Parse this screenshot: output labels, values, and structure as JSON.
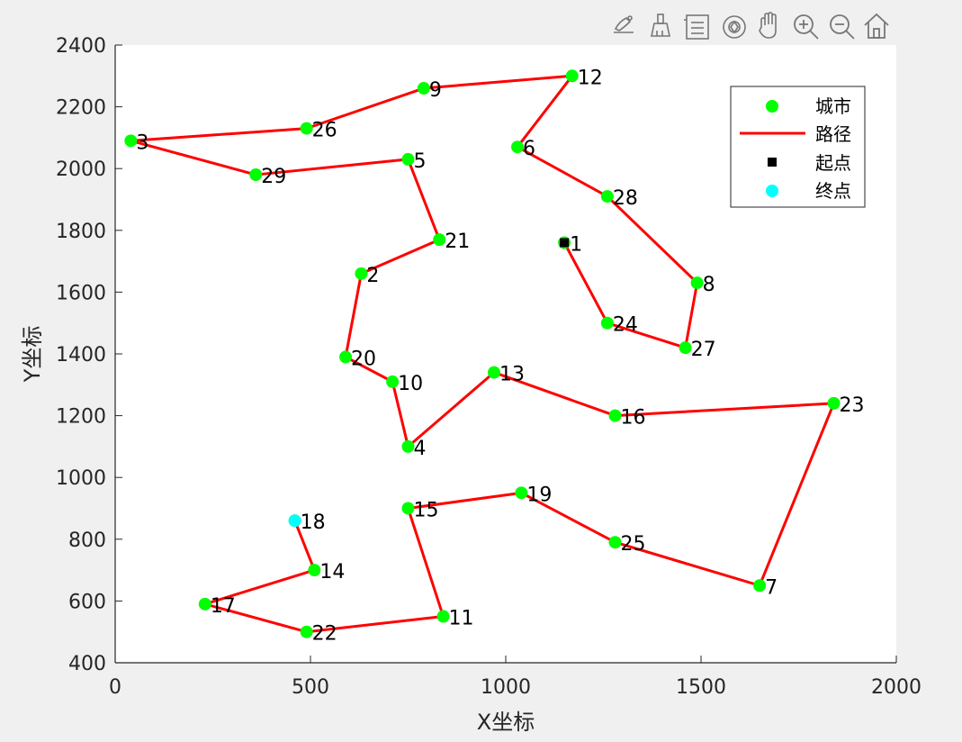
{
  "toolbar": {
    "icons": [
      "brush-icon",
      "paint-icon",
      "legend-icon",
      "rotate-icon",
      "pan-hand-icon",
      "zoom-in-icon",
      "zoom-out-icon",
      "home-icon"
    ]
  },
  "colors": {
    "figure_bg": "#f0f0f0",
    "axes_bg": "#ffffff",
    "city": "#00ff00",
    "path": "#ff0000",
    "start": "#000000",
    "end": "#00ffff"
  },
  "chart_data": {
    "type": "line",
    "title": "",
    "xlabel": "X坐标",
    "ylabel": "Y坐标",
    "xlim": [
      0,
      2000
    ],
    "ylim": [
      400,
      2400
    ],
    "xticks": [
      0,
      500,
      1000,
      1500,
      2000
    ],
    "yticks": [
      400,
      600,
      800,
      1000,
      1200,
      1400,
      1600,
      1800,
      2000,
      2200,
      2400
    ],
    "grid": false,
    "legend_position": "top-right",
    "legend": [
      "城市",
      "路径",
      "起点",
      "终点"
    ],
    "cities": [
      {
        "id": "1",
        "x": 1150,
        "y": 1760
      },
      {
        "id": "2",
        "x": 630,
        "y": 1660
      },
      {
        "id": "3",
        "x": 40,
        "y": 2090
      },
      {
        "id": "4",
        "x": 750,
        "y": 1100
      },
      {
        "id": "5",
        "x": 750,
        "y": 2030
      },
      {
        "id": "6",
        "x": 1030,
        "y": 2070
      },
      {
        "id": "7",
        "x": 1650,
        "y": 650
      },
      {
        "id": "8",
        "x": 1490,
        "y": 1630
      },
      {
        "id": "9",
        "x": 790,
        "y": 2260
      },
      {
        "id": "10",
        "x": 710,
        "y": 1310
      },
      {
        "id": "11",
        "x": 840,
        "y": 550
      },
      {
        "id": "12",
        "x": 1170,
        "y": 2300
      },
      {
        "id": "13",
        "x": 970,
        "y": 1340
      },
      {
        "id": "14",
        "x": 510,
        "y": 700
      },
      {
        "id": "15",
        "x": 750,
        "y": 900
      },
      {
        "id": "16",
        "x": 1280,
        "y": 1200
      },
      {
        "id": "17",
        "x": 230,
        "y": 590
      },
      {
        "id": "18",
        "x": 460,
        "y": 860
      },
      {
        "id": "19",
        "x": 1040,
        "y": 950
      },
      {
        "id": "20",
        "x": 590,
        "y": 1390
      },
      {
        "id": "21",
        "x": 830,
        "y": 1770
      },
      {
        "id": "22",
        "x": 490,
        "y": 500
      },
      {
        "id": "23",
        "x": 1840,
        "y": 1240
      },
      {
        "id": "24",
        "x": 1260,
        "y": 1500
      },
      {
        "id": "25",
        "x": 1280,
        "y": 790
      },
      {
        "id": "26",
        "x": 490,
        "y": 2130
      },
      {
        "id": "27",
        "x": 1460,
        "y": 1420
      },
      {
        "id": "28",
        "x": 1260,
        "y": 1910
      },
      {
        "id": "29",
        "x": 360,
        "y": 1980
      }
    ],
    "route": [
      "1",
      "24",
      "27",
      "8",
      "28",
      "6",
      "12",
      "9",
      "26",
      "3",
      "29",
      "5",
      "21",
      "2",
      "20",
      "10",
      "4",
      "13",
      "16",
      "23",
      "7",
      "25",
      "19",
      "15",
      "11",
      "22",
      "17",
      "14",
      "18"
    ],
    "start": "1",
    "end": "18"
  }
}
